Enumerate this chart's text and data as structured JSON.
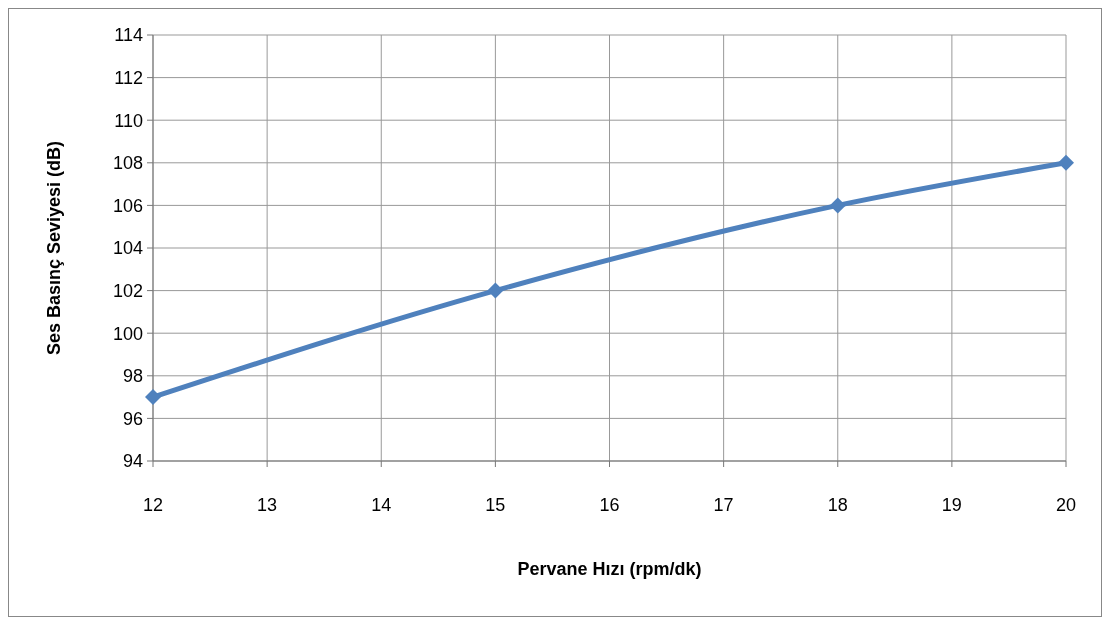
{
  "chart_data": {
    "type": "line",
    "xlabel": "Pervane Hızı  (rpm/dk)",
    "ylabel": "Ses Basınç  Seviyesi  (dB)",
    "x": [
      12,
      15,
      18,
      20
    ],
    "series": [
      {
        "color": "#4f81bd",
        "values": [
          97,
          102,
          106,
          108
        ]
      }
    ],
    "xlim": [
      12,
      20
    ],
    "xticks": [
      12,
      13,
      14,
      15,
      16,
      17,
      18,
      19,
      20
    ],
    "ylim": [
      94,
      114
    ],
    "yticks": [
      94,
      96,
      98,
      100,
      102,
      104,
      106,
      108,
      110,
      112,
      114
    ],
    "grid": true,
    "marker": "diamond",
    "line_style": "solid"
  }
}
